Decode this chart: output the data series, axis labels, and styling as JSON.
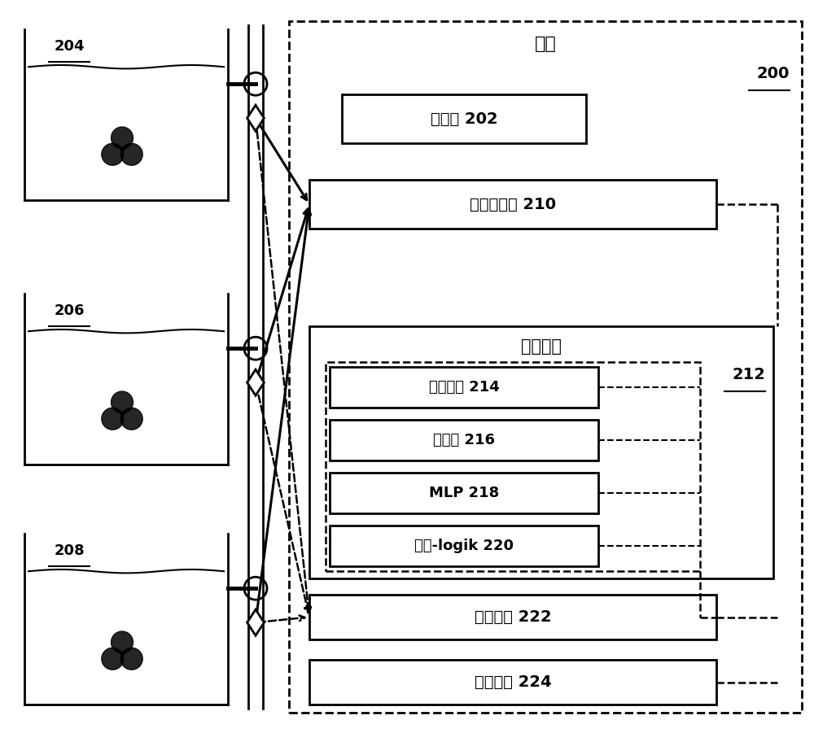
{
  "title": "系统",
  "system_label": "200",
  "processor_label": "处理器 202",
  "measure_label": "测量值界面 210",
  "storage_title": "存储介质",
  "storage_label": "212",
  "model_label": "代谢模型 214",
  "ref_label": "参照值 216",
  "mlp_label": "MLP 218",
  "program_label": "程序-logik 220",
  "control_label": "控制界面 222",
  "user_label": "用户界面 224",
  "bioreactor_labels": [
    "204",
    "206",
    "208"
  ],
  "bg_color": "#ffffff"
}
